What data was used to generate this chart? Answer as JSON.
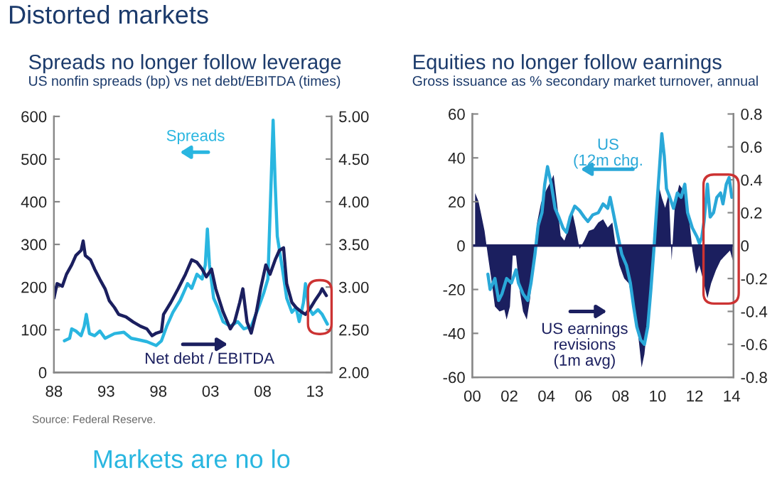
{
  "chart_data": [
    {
      "type": "line",
      "title": "Spreads no longer follow leverage",
      "subtitle": "US nonfin spreads (bp) vs net debt/EBITDA (times)",
      "annotations": [
        "Distorted markets",
        "Source: Federal Reserve.",
        "Markets are no lo"
      ],
      "series": [
        {
          "name": "Spreads",
          "color": "#29b6e0",
          "x": [
            1989.0,
            1989.5,
            1989.7,
            1990.1,
            1990.6,
            1990.9,
            1991.1,
            1991.4,
            1991.9,
            1992.4,
            1992.9,
            1993.8,
            1994.7,
            1995.4,
            1996.0,
            1996.9,
            1997.8,
            1998.3,
            1998.8,
            1999.4,
            2000.1,
            2000.8,
            2001.2,
            2001.7,
            2002.2,
            2002.5,
            2002.7,
            2002.9,
            2003.3,
            2003.7,
            2004.2,
            2004.9,
            2005.6,
            2006.2,
            2006.9,
            2007.6,
            2008.1,
            2008.5,
            2008.8,
            2009.0,
            2009.2,
            2009.4,
            2009.9,
            2010.3,
            2010.8,
            2011.2,
            2011.5,
            2011.9,
            2012.1,
            2012.4,
            2012.8,
            2013.3,
            2013.7,
            2014.2
          ],
          "values": [
            74,
            80,
            102,
            97,
            86,
            108,
            136,
            91,
            86,
            97,
            80,
            91,
            94,
            80,
            77,
            72,
            63,
            74,
            108,
            141,
            169,
            208,
            197,
            230,
            219,
            252,
            336,
            252,
            174,
            152,
            119,
            108,
            119,
            102,
            108,
            152,
            186,
            219,
            441,
            591,
            441,
            319,
            241,
            174,
            141,
            152,
            119,
            163,
            208,
            152,
            136,
            147,
            136,
            113
          ]
        },
        {
          "name": "Net debt / EBITDA",
          "color": "#1b1f5f",
          "axis": "y2",
          "x": [
            1988.0,
            1988.3,
            1988.8,
            1989.2,
            1989.7,
            1990.1,
            1990.6,
            1990.8,
            1991.0,
            1991.5,
            1991.9,
            1992.4,
            1992.9,
            1993.3,
            1993.8,
            1994.2,
            1994.9,
            1995.6,
            1996.3,
            1996.9,
            1997.4,
            1997.8,
            1998.3,
            1998.5,
            1999.2,
            1999.9,
            2000.6,
            2001.2,
            2001.7,
            2002.2,
            2002.6,
            2003.1,
            2003.5,
            2004.2,
            2004.9,
            2005.3,
            2005.8,
            2006.1,
            2006.5,
            2006.9,
            2007.4,
            2007.8,
            2008.3,
            2008.7,
            2009.2,
            2009.6,
            2010.0,
            2010.3,
            2010.8,
            2011.2,
            2011.7,
            2012.1,
            2012.6,
            2013.0,
            2013.5,
            2013.7,
            2014.1
          ],
          "values": [
            2.87,
            3.04,
            3.01,
            3.15,
            3.26,
            3.37,
            3.43,
            3.54,
            3.37,
            3.32,
            3.21,
            3.09,
            2.98,
            2.84,
            2.76,
            2.68,
            2.65,
            2.59,
            2.54,
            2.51,
            2.43,
            2.46,
            2.48,
            2.68,
            2.82,
            2.98,
            3.15,
            3.32,
            3.29,
            3.21,
            3.12,
            3.21,
            2.98,
            2.71,
            2.51,
            2.59,
            2.82,
            2.98,
            2.59,
            2.46,
            2.71,
            2.98,
            3.26,
            3.15,
            3.32,
            3.43,
            3.46,
            3.04,
            2.82,
            2.76,
            2.71,
            2.68,
            2.76,
            2.84,
            2.93,
            2.98,
            2.9
          ]
        }
      ],
      "xlim": [
        1988,
        2014.6
      ],
      "xticks": [
        {
          "value": 1988,
          "label": "88"
        },
        {
          "value": 1993,
          "label": "93"
        },
        {
          "value": 1998,
          "label": "98"
        },
        {
          "value": 2003,
          "label": "03"
        },
        {
          "value": 2008,
          "label": "08"
        },
        {
          "value": 2013,
          "label": "13"
        }
      ],
      "ylim": [
        0,
        600
      ],
      "yticks": [
        0,
        100,
        200,
        300,
        400,
        500,
        600
      ],
      "y2lim": [
        2,
        5
      ],
      "y2ticks": [
        {
          "value": 2,
          "label": "2.00"
        },
        {
          "value": 2.5,
          "label": "2.50"
        },
        {
          "value": 3,
          "label": "3.00"
        },
        {
          "value": 3.5,
          "label": "3.50"
        },
        {
          "value": 4,
          "label": "4.00"
        },
        {
          "value": 4.5,
          "label": "4.50"
        },
        {
          "value": 5,
          "label": "5.00"
        }
      ],
      "grid": false,
      "legend": "bottom"
    },
    {
      "type": "line",
      "title": "Equities no longer follow earnings",
      "subtitle": "Gross issuance as % secondary market turnover, annual",
      "series": [
        {
          "name": "US earnings\nrevisions\n(1m avg)",
          "color": "#1b1f5f",
          "type": "area",
          "axis": "y2",
          "x": [
            2000.15,
            2000.33,
            2000.46,
            2000.66,
            2000.84,
            2001.02,
            2001.22,
            2001.47,
            2001.73,
            2001.85,
            2002.03,
            2002.18,
            2002.36,
            2002.54,
            2002.74,
            2002.94,
            2003.12,
            2003.3,
            2003.5,
            2003.71,
            2003.91,
            2004.14,
            2004.39,
            2004.57,
            2004.77,
            2004.97,
            2005.15,
            2005.41,
            2005.58,
            2005.79,
            2006.04,
            2006.29,
            2006.55,
            2006.8,
            2007.06,
            2007.31,
            2007.56,
            2007.77,
            2007.94,
            2008.2,
            2008.45,
            2008.71,
            2008.96,
            2009.14,
            2009.29,
            2009.47,
            2009.64,
            2009.85,
            2010.05,
            2010.23,
            2010.41,
            2010.61,
            2010.76,
            2010.94,
            2011.17,
            2011.37,
            2011.62,
            2011.88,
            2012.08,
            2012.26,
            2012.44,
            2012.69,
            2012.89,
            2013.15,
            2013.4,
            2013.65,
            2013.91,
            2014.06
          ],
          "values": [
            0.32,
            0.27,
            0.2,
            0.09,
            -0.06,
            -0.2,
            -0.37,
            -0.4,
            -0.39,
            -0.45,
            -0.37,
            -0.06,
            -0.06,
            -0.26,
            -0.4,
            -0.45,
            -0.32,
            -0.09,
            0.14,
            0.26,
            0.32,
            0.37,
            0.43,
            0.26,
            0.06,
            0.03,
            0.09,
            0.2,
            0.11,
            -0.02,
            0.03,
            0.09,
            0.1,
            0.14,
            0.16,
            0.11,
            0.14,
            -0.03,
            -0.12,
            -0.2,
            -0.23,
            -0.37,
            -0.55,
            -0.74,
            -0.66,
            -0.46,
            -0.2,
            0.14,
            0.37,
            0.29,
            0.23,
            0.32,
            -0.09,
            0.26,
            0.37,
            0.34,
            0.26,
            -0.03,
            -0.17,
            -0.12,
            -0.2,
            -0.32,
            -0.23,
            -0.15,
            -0.09,
            -0.06,
            -0.03,
            -0.09
          ]
        },
        {
          "name": "US\n(12m chg.",
          "color": "#2aa8d8",
          "x": [
            2000.84,
            2000.96,
            2001.22,
            2001.42,
            2001.6,
            2001.85,
            2002.11,
            2002.36,
            2002.49,
            2002.74,
            2002.99,
            2003.17,
            2003.38,
            2003.55,
            2003.76,
            2003.91,
            2004.06,
            2004.26,
            2004.47,
            2004.67,
            2004.9,
            2005.08,
            2005.28,
            2005.53,
            2005.79,
            2006.04,
            2006.24,
            2006.5,
            2006.8,
            2007.06,
            2007.31,
            2007.44,
            2007.61,
            2007.82,
            2008.07,
            2008.32,
            2008.53,
            2008.71,
            2008.88,
            2009.09,
            2009.29,
            2009.47,
            2009.64,
            2009.8,
            2009.95,
            2010.1,
            2010.23,
            2010.36,
            2010.48,
            2010.66,
            2010.86,
            2011.07,
            2011.27,
            2011.47,
            2011.62,
            2011.88,
            2012.13,
            2012.26,
            2012.39,
            2012.51,
            2012.69,
            2012.84,
            2013.02,
            2013.2,
            2013.4,
            2013.53,
            2013.71,
            2013.86,
            2014.01
          ],
          "values": [
            -13,
            -20,
            -15,
            -25,
            -22,
            -15,
            -17,
            -11,
            -17,
            -22,
            -25,
            -17,
            -4,
            9,
            15,
            28,
            36,
            28,
            17,
            13,
            8,
            6,
            13,
            18,
            16,
            13,
            11,
            14,
            15,
            19,
            17,
            22,
            15,
            6,
            -4,
            -9,
            -17,
            -28,
            -37,
            -43,
            -45,
            -37,
            -20,
            -2,
            17,
            35,
            51,
            41,
            26,
            22,
            17,
            24,
            22,
            28,
            15,
            8,
            4,
            1,
            4,
            11,
            28,
            13,
            15,
            22,
            24,
            19,
            28,
            31,
            22
          ]
        }
      ],
      "xlim": [
        2000,
        2014.1
      ],
      "xticks": [
        {
          "value": 2000,
          "label": "00"
        },
        {
          "value": 2002,
          "label": "02"
        },
        {
          "value": 2004,
          "label": "04"
        },
        {
          "value": 2006,
          "label": "06"
        },
        {
          "value": 2008,
          "label": "08"
        },
        {
          "value": 2010,
          "label": "10"
        },
        {
          "value": 2012,
          "label": "12"
        },
        {
          "value": 2014,
          "label": "14"
        }
      ],
      "ylim": [
        -60,
        60
      ],
      "yticks": [
        -60,
        -40,
        -20,
        0,
        20,
        40,
        60
      ],
      "y2lim": [
        -0.8,
        0.8
      ],
      "y2ticks": [
        -0.8,
        -0.6,
        -0.4,
        -0.2,
        0,
        0.2,
        0.4,
        0.6,
        0.8
      ],
      "ref_lines": [
        {
          "axis": "y",
          "value": 0,
          "color": "#1b1f5f"
        }
      ],
      "grid": false,
      "legend": "bottom"
    }
  ]
}
